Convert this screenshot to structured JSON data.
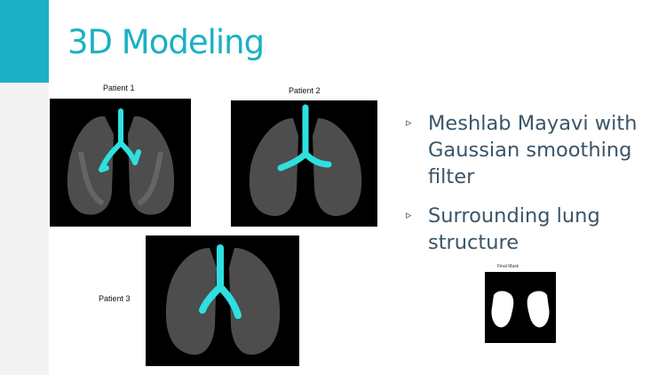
{
  "slide": {
    "title": "3D Modeling"
  },
  "patients": [
    {
      "label": "Patient 1"
    },
    {
      "label": "Patient 2"
    },
    {
      "label": "Patient 3"
    }
  ],
  "bullets": [
    {
      "marker": "▹",
      "text": "Meshlab Mayavi with Gaussian smoothing filter"
    },
    {
      "marker": "▹",
      "text": "Surrounding lung structure"
    }
  ],
  "mask_image": {
    "label": "Final Mask"
  },
  "colors": {
    "accent": "#1bb0c3",
    "airway": "#2ee0e0",
    "text": "#3a5568"
  },
  "icons": [
    "bullet-arrow-icon"
  ]
}
